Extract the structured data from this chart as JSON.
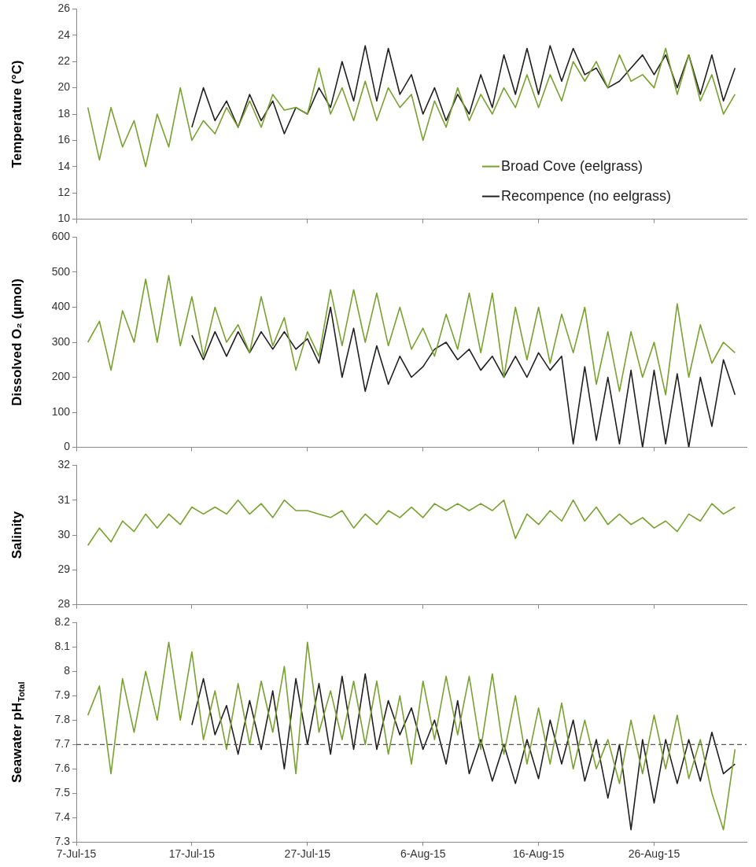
{
  "chart_data": [
    {
      "type": "line",
      "ylabel": "Temperature (°C)",
      "legend": "bottom right",
      "marker": "none",
      "line_style": "solid",
      "tick_labels": "y",
      "x": [
        "--07-08",
        "--07-09",
        "--07-10",
        "--07-11",
        "--07-12",
        "--07-13",
        "--07-14",
        "--07-15",
        "--07-16",
        "--07-17",
        "--07-18",
        "--07-19",
        "--07-20",
        "--07-21",
        "--07-22",
        "--07-23",
        "--07-24",
        "--07-25",
        "--07-26",
        "--07-27",
        "--07-28",
        "--07-29",
        "--07-30",
        "--07-31",
        "--08-01",
        "--08-02",
        "--08-03",
        "--08-04",
        "--08-05",
        "--08-06",
        "--08-07",
        "--08-08",
        "--08-09",
        "--08-10",
        "--08-11",
        "--08-12",
        "--08-13",
        "--08-14",
        "--08-15",
        "--08-16",
        "--08-17",
        "--08-18",
        "--08-19",
        "--08-20",
        "--08-21",
        "--08-22",
        "--08-23",
        "--08-24",
        "--08-25",
        "--08-26",
        "--08-27",
        "--08-28",
        "--08-29",
        "--08-30",
        "--08-31",
        "--09-01",
        "--09-02"
      ],
      "series": [
        {
          "name": "Broad Cove (eelgrass)",
          "color": "#78a22f",
          "values": [
            18.5,
            14.5,
            18.5,
            15.5,
            17.5,
            14,
            18,
            15.5,
            20,
            16,
            17.5,
            16.5,
            18.5,
            17,
            19,
            17,
            19.5,
            18.3,
            18.5,
            18,
            21.5,
            18,
            20,
            17.5,
            20.5,
            17.5,
            20,
            18.5,
            19.5,
            16,
            19,
            17,
            20,
            17.5,
            19.5,
            18,
            20,
            18.5,
            21,
            18.5,
            21,
            19,
            22,
            20.5,
            22,
            20,
            22.5,
            20.5,
            21,
            20,
            23,
            19.5,
            22.5,
            19,
            21,
            18,
            19.5
          ]
        },
        {
          "name": "Recompence (no eelgrass)",
          "color": "#231f20",
          "values": [
            null,
            null,
            null,
            null,
            null,
            null,
            null,
            null,
            null,
            17,
            20,
            17.5,
            19,
            17,
            19.5,
            17.5,
            19,
            16.5,
            18.5,
            18,
            20,
            18.5,
            22,
            19,
            23.2,
            19,
            23,
            19.5,
            21,
            18,
            20,
            17.5,
            19.5,
            18,
            21,
            18.5,
            22.5,
            19.5,
            23,
            19.5,
            23.2,
            20.5,
            23,
            21,
            21.5,
            20,
            20.5,
            21.5,
            22.5,
            21,
            22.5,
            20,
            22.5,
            19.5,
            22.5,
            19,
            21.5
          ]
        }
      ],
      "xlim": [
        "--07-07",
        "--09-03"
      ],
      "xticks": [
        {
          "value": "--07-07",
          "label": null
        },
        {
          "value": "--07-17",
          "label": null
        },
        {
          "value": "--07-27",
          "label": null
        },
        {
          "value": "--08-06",
          "label": null
        },
        {
          "value": "--08-16",
          "label": null
        },
        {
          "value": "--08-26",
          "label": null
        }
      ],
      "ylim": [
        10,
        26
      ],
      "yticks": [
        10,
        12,
        14,
        16,
        18,
        20,
        22,
        24,
        26
      ]
    },
    {
      "type": "line",
      "ylabel": "Dissolved O₂ (µmol)",
      "marker": "none",
      "line_style": "solid",
      "tick_labels": "y",
      "x": [
        "--07-08",
        "--07-09",
        "--07-10",
        "--07-11",
        "--07-12",
        "--07-13",
        "--07-14",
        "--07-15",
        "--07-16",
        "--07-17",
        "--07-18",
        "--07-19",
        "--07-20",
        "--07-21",
        "--07-22",
        "--07-23",
        "--07-24",
        "--07-25",
        "--07-26",
        "--07-27",
        "--07-28",
        "--07-29",
        "--07-30",
        "--07-31",
        "--08-01",
        "--08-02",
        "--08-03",
        "--08-04",
        "--08-05",
        "--08-06",
        "--08-07",
        "--08-08",
        "--08-09",
        "--08-10",
        "--08-11",
        "--08-12",
        "--08-13",
        "--08-14",
        "--08-15",
        "--08-16",
        "--08-17",
        "--08-18",
        "--08-19",
        "--08-20",
        "--08-21",
        "--08-22",
        "--08-23",
        "--08-24",
        "--08-25",
        "--08-26",
        "--08-27",
        "--08-28",
        "--08-29",
        "--08-30",
        "--08-31",
        "--09-01",
        "--09-02"
      ],
      "series": [
        {
          "color": "#78a22f",
          "values": [
            300,
            360,
            220,
            390,
            300,
            480,
            300,
            490,
            290,
            430,
            260,
            400,
            300,
            350,
            270,
            430,
            290,
            370,
            220,
            330,
            260,
            450,
            290,
            450,
            300,
            440,
            290,
            400,
            280,
            340,
            260,
            380,
            280,
            440,
            270,
            440,
            200,
            400,
            250,
            400,
            240,
            380,
            270,
            400,
            180,
            330,
            160,
            330,
            200,
            300,
            150,
            410,
            200,
            350,
            240,
            300,
            270
          ]
        },
        {
          "color": "#231f20",
          "values": [
            null,
            null,
            null,
            null,
            null,
            null,
            null,
            null,
            null,
            320,
            250,
            330,
            260,
            330,
            270,
            330,
            280,
            330,
            280,
            310,
            240,
            400,
            200,
            340,
            160,
            290,
            180,
            260,
            200,
            230,
            280,
            300,
            250,
            280,
            220,
            260,
            200,
            260,
            200,
            270,
            220,
            260,
            10,
            230,
            20,
            200,
            10,
            220,
            0,
            220,
            10,
            210,
            0,
            200,
            60,
            250,
            150
          ]
        }
      ],
      "xlim": [
        "--07-07",
        "--09-03"
      ],
      "xticks": [
        {
          "value": "--07-07",
          "label": null
        },
        {
          "value": "--07-17",
          "label": null
        },
        {
          "value": "--07-27",
          "label": null
        },
        {
          "value": "--08-06",
          "label": null
        },
        {
          "value": "--08-16",
          "label": null
        },
        {
          "value": "--08-26",
          "label": null
        }
      ],
      "ylim": [
        0,
        600
      ],
      "yticks": [
        0,
        100,
        200,
        300,
        400,
        500,
        600
      ]
    },
    {
      "type": "line",
      "ylabel": "Salinity",
      "marker": "none",
      "line_style": "solid",
      "tick_labels": "y",
      "x": [
        "--07-08",
        "--07-09",
        "--07-10",
        "--07-11",
        "--07-12",
        "--07-13",
        "--07-14",
        "--07-15",
        "--07-16",
        "--07-17",
        "--07-18",
        "--07-19",
        "--07-20",
        "--07-21",
        "--07-22",
        "--07-23",
        "--07-24",
        "--07-25",
        "--07-26",
        "--07-27",
        "--07-28",
        "--07-29",
        "--07-30",
        "--07-31",
        "--08-01",
        "--08-02",
        "--08-03",
        "--08-04",
        "--08-05",
        "--08-06",
        "--08-07",
        "--08-08",
        "--08-09",
        "--08-10",
        "--08-11",
        "--08-12",
        "--08-13",
        "--08-14",
        "--08-15",
        "--08-16",
        "--08-17",
        "--08-18",
        "--08-19",
        "--08-20",
        "--08-21",
        "--08-22",
        "--08-23",
        "--08-24",
        "--08-25",
        "--08-26",
        "--08-27",
        "--08-28",
        "--08-29",
        "--08-30",
        "--08-31",
        "--09-01",
        "--09-02"
      ],
      "series": [
        {
          "color": "#78a22f",
          "values": [
            29.7,
            30.2,
            29.8,
            30.4,
            30.1,
            30.6,
            30.2,
            30.6,
            30.3,
            30.8,
            30.6,
            30.8,
            30.6,
            31.0,
            30.6,
            30.9,
            30.5,
            31.0,
            30.7,
            30.7,
            30.6,
            30.5,
            30.7,
            30.2,
            30.6,
            30.3,
            30.7,
            30.5,
            30.8,
            30.5,
            30.9,
            30.7,
            30.9,
            30.7,
            30.9,
            30.7,
            31.0,
            29.9,
            30.6,
            30.3,
            30.7,
            30.4,
            31.0,
            30.4,
            30.8,
            30.3,
            30.6,
            30.3,
            30.5,
            30.2,
            30.4,
            30.1,
            30.6,
            30.4,
            30.9,
            30.6,
            30.8
          ]
        }
      ],
      "xlim": [
        "--07-07",
        "--09-03"
      ],
      "xticks": [
        {
          "value": "--07-07",
          "label": null
        },
        {
          "value": "--07-17",
          "label": null
        },
        {
          "value": "--07-27",
          "label": null
        },
        {
          "value": "--08-06",
          "label": null
        },
        {
          "value": "--08-16",
          "label": null
        },
        {
          "value": "--08-26",
          "label": null
        }
      ],
      "ylim": [
        28,
        32
      ],
      "yticks": [
        28,
        29,
        30,
        31,
        32
      ]
    },
    {
      "type": "line",
      "ylabel": "Seawater pH$_{Total}$",
      "marker": "none",
      "line_style": "solid",
      "x": [
        "--07-08",
        "--07-09",
        "--07-10",
        "--07-11",
        "--07-12",
        "--07-13",
        "--07-14",
        "--07-15",
        "--07-16",
        "--07-17",
        "--07-18",
        "--07-19",
        "--07-20",
        "--07-21",
        "--07-22",
        "--07-23",
        "--07-24",
        "--07-25",
        "--07-26",
        "--07-27",
        "--07-28",
        "--07-29",
        "--07-30",
        "--07-31",
        "--08-01",
        "--08-02",
        "--08-03",
        "--08-04",
        "--08-05",
        "--08-06",
        "--08-07",
        "--08-08",
        "--08-09",
        "--08-10",
        "--08-11",
        "--08-12",
        "--08-13",
        "--08-14",
        "--08-15",
        "--08-16",
        "--08-17",
        "--08-18",
        "--08-19",
        "--08-20",
        "--08-21",
        "--08-22",
        "--08-23",
        "--08-24",
        "--08-25",
        "--08-26",
        "--08-27",
        "--08-28",
        "--08-29",
        "--08-30",
        "--08-31",
        "--09-01",
        "--09-02"
      ],
      "series": [
        {
          "color": "#78a22f",
          "values": [
            7.82,
            7.94,
            7.58,
            7.97,
            7.75,
            8.0,
            7.8,
            8.12,
            7.8,
            8.08,
            7.72,
            7.92,
            7.68,
            7.95,
            7.7,
            7.96,
            7.75,
            8.02,
            7.58,
            8.12,
            7.75,
            7.92,
            7.72,
            7.96,
            7.7,
            7.96,
            7.66,
            7.9,
            7.62,
            7.96,
            7.72,
            7.98,
            7.74,
            7.98,
            7.68,
            7.99,
            7.66,
            7.9,
            7.62,
            7.85,
            7.62,
            7.87,
            7.6,
            7.8,
            7.6,
            7.72,
            7.54,
            7.8,
            7.58,
            7.82,
            7.6,
            7.82,
            7.56,
            7.72,
            7.5,
            7.35,
            7.68
          ]
        },
        {
          "color": "#231f20",
          "values": [
            null,
            null,
            null,
            null,
            null,
            null,
            null,
            null,
            null,
            7.78,
            7.97,
            7.74,
            7.86,
            7.66,
            7.88,
            7.68,
            7.92,
            7.6,
            7.97,
            7.7,
            7.95,
            7.66,
            7.98,
            7.68,
            7.99,
            7.68,
            7.88,
            7.74,
            7.85,
            7.68,
            7.8,
            7.62,
            7.88,
            7.58,
            7.72,
            7.55,
            7.7,
            7.54,
            7.72,
            7.56,
            7.8,
            7.62,
            7.8,
            7.55,
            7.72,
            7.48,
            7.7,
            7.35,
            7.72,
            7.46,
            7.72,
            7.54,
            7.72,
            7.55,
            7.75,
            7.58,
            7.62
          ]
        }
      ],
      "xlim": [
        "--07-07",
        "--09-03"
      ],
      "xticks": [
        {
          "value": "--07-07",
          "label": "7-Jul-15"
        },
        {
          "value": "--07-17",
          "label": "17-Jul-15"
        },
        {
          "value": "--07-27",
          "label": "27-Jul-15"
        },
        {
          "value": "--08-06",
          "label": "6-Aug-15"
        },
        {
          "value": "--08-16",
          "label": "16-Aug-15"
        },
        {
          "value": "--08-26",
          "label": "26-Aug-15"
        }
      ],
      "ylim": [
        7.3,
        8.2
      ],
      "yticks": [
        7.3,
        7.4,
        7.5,
        7.6,
        7.7,
        7.8,
        7.9,
        8,
        8.1,
        8.2
      ],
      "ref_lines": [
        {
          "axis": "y",
          "value": 7.7,
          "color": "#555555",
          "line_style": "dashed"
        }
      ]
    }
  ]
}
